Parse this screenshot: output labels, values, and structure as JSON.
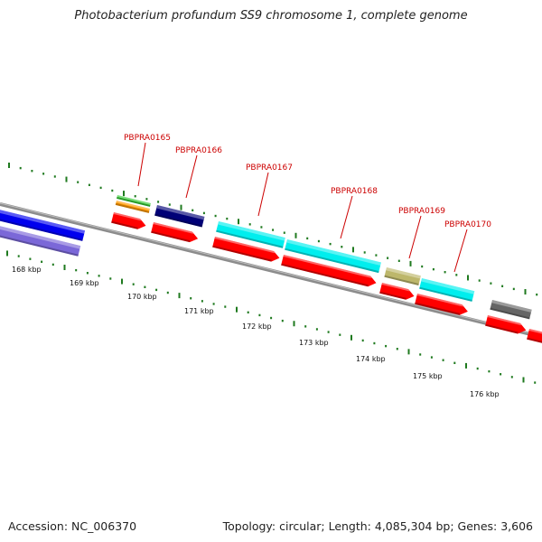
{
  "title": "Photobacterium profundum SS9 chromosome 1, complete genome",
  "accession": "Accession: NC_006370",
  "topology": "Topology: circular; Length: 4,085,304 bp; Genes: 3,606",
  "ruler": {
    "labels": [
      "168 kbp",
      "169 kbp",
      "170 kbp",
      "171 kbp",
      "172 kbp",
      "173 kbp",
      "174 kbp",
      "175 kbp",
      "176 kbp"
    ]
  },
  "gene_labels": [
    "PBPRA0165",
    "PBPRA0166",
    "PBPRA0167",
    "PBPRA0168",
    "PBPRA0169",
    "PBPRA0170"
  ],
  "colors": {
    "backbone": "#8c8c8c",
    "gene_cds": "#ff0000",
    "tick": "#1f7a1f",
    "label": "#cc0000",
    "feature_blue": "#0000ee",
    "feature_slate": "#7b68d8",
    "feature_green": "#33cc33",
    "feature_orange": "#ff9900",
    "feature_navy": "#000077",
    "feature_cyan": "#00eeee",
    "feature_khaki": "#bdb76b",
    "feature_gray": "#666666"
  }
}
